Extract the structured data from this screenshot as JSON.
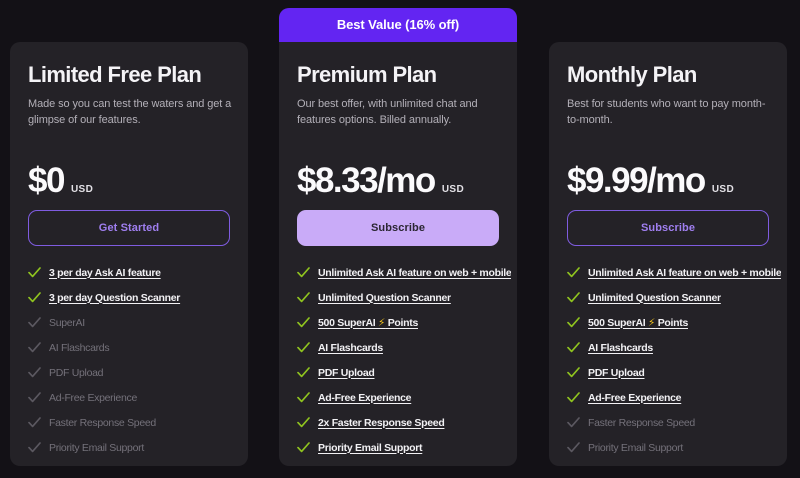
{
  "colors": {
    "page_background": "#131116",
    "card_background": "#242227",
    "badge_background": "#6325f2",
    "accent_purple": "#a07ff0",
    "filled_button_background": "#c9abf8",
    "filled_button_text": "#2b2633",
    "check_green": "#8fc31f",
    "muted_text": "#74717a"
  },
  "plans": [
    {
      "name": "Limited Free Plan",
      "description": "Made so you can test the waters and get a glimpse of our features.",
      "price": "$0",
      "currency": "USD",
      "cta": {
        "label": "Get Started",
        "style": "outline"
      },
      "features": [
        {
          "label": "3 per day Ask AI feature",
          "included": true
        },
        {
          "label": "3 per day Question Scanner",
          "included": true
        },
        {
          "label": "SuperAI",
          "included": false
        },
        {
          "label": "AI Flashcards",
          "included": false
        },
        {
          "label": "PDF Upload",
          "included": false
        },
        {
          "label": "Ad-Free Experience",
          "included": false
        },
        {
          "label": "Faster Response Speed",
          "included": false
        },
        {
          "label": "Priority Email Support",
          "included": false
        }
      ]
    },
    {
      "name": "Premium Plan",
      "badge": "Best Value (16% off)",
      "description": "Our best offer, with unlimited chat and features options. Billed annually.",
      "price": "$8.33/mo",
      "currency": "USD",
      "cta": {
        "label": "Subscribe",
        "style": "filled"
      },
      "features": [
        {
          "label": "Unlimited Ask AI feature on web + mobile",
          "included": true
        },
        {
          "label": "Unlimited Question Scanner",
          "included": true
        },
        {
          "label": "500 SuperAI ⚡ Points",
          "included": true
        },
        {
          "label": "AI Flashcards",
          "included": true
        },
        {
          "label": "PDF Upload",
          "included": true
        },
        {
          "label": "Ad-Free Experience",
          "included": true
        },
        {
          "label": "2x Faster Response Speed",
          "included": true
        },
        {
          "label": "Priority Email Support",
          "included": true
        }
      ]
    },
    {
      "name": "Monthly Plan",
      "description": "Best for students who want to pay month-to-month.",
      "price": "$9.99/mo",
      "currency": "USD",
      "cta": {
        "label": "Subscribe",
        "style": "outline"
      },
      "features": [
        {
          "label": "Unlimited Ask AI feature on web + mobile",
          "included": true
        },
        {
          "label": "Unlimited Question Scanner",
          "included": true
        },
        {
          "label": "500 SuperAI ⚡ Points",
          "included": true
        },
        {
          "label": "AI Flashcards",
          "included": true
        },
        {
          "label": "PDF Upload",
          "included": true
        },
        {
          "label": "Ad-Free Experience",
          "included": true
        },
        {
          "label": "Faster Response Speed",
          "included": false
        },
        {
          "label": "Priority Email Support",
          "included": false
        }
      ]
    }
  ]
}
